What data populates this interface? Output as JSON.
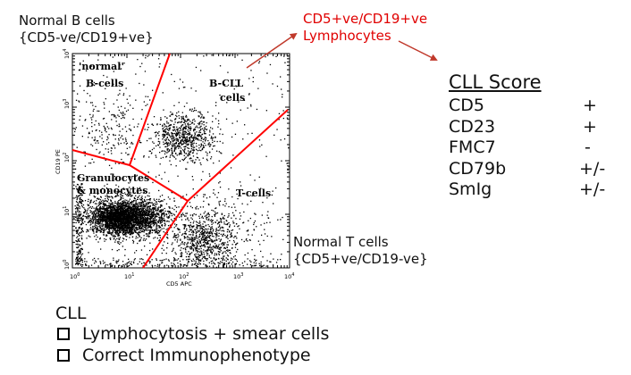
{
  "annotations": {
    "normal_b_title": "Normal B cells",
    "normal_b_phenotype": "{CD5-ve/CD19+ve}",
    "cd5_cd19_title": "CD5+ve/CD19+ve",
    "cd5_cd19_subtitle": "Lymphocytes",
    "normal_t_title": "Normal T cells",
    "normal_t_phenotype": "{CD5+ve/CD19-ve}"
  },
  "plot": {
    "x_axis_label": "CD5 APC",
    "y_axis_label": "CD19 PE",
    "x_ticks": [
      "10",
      "10",
      "10",
      "10",
      "10"
    ],
    "x_tick_exponents": [
      "0",
      "1",
      "2",
      "3",
      "4"
    ],
    "y_ticks": [
      "10",
      "10",
      "10",
      "10",
      "10"
    ],
    "y_tick_exponents": [
      "0",
      "1",
      "2",
      "3",
      "4"
    ],
    "gate_color": "#ff0000",
    "label_color": "#1a3ccc",
    "gate_labels": {
      "normal_b": [
        "'normal'",
        "B-cells"
      ],
      "b_cll": [
        "B-CLL",
        "cells"
      ],
      "granulocytes": [
        "Granulocytes",
        "& monocytes"
      ],
      "t_cells": "T-cells"
    }
  },
  "cll_score": {
    "title": "CLL Score",
    "rows": [
      {
        "marker": "CD5",
        "value": "+"
      },
      {
        "marker": "CD23",
        "value": "+"
      },
      {
        "marker": "FMC7",
        "value": "-"
      },
      {
        "marker": "CD79b",
        "value": "+/-"
      },
      {
        "marker": "SmIg",
        "value": "+/-"
      }
    ]
  },
  "criteria": {
    "title": "CLL",
    "items": [
      "Lymphocytosis + smear cells",
      "Correct Immunophenotype"
    ]
  }
}
